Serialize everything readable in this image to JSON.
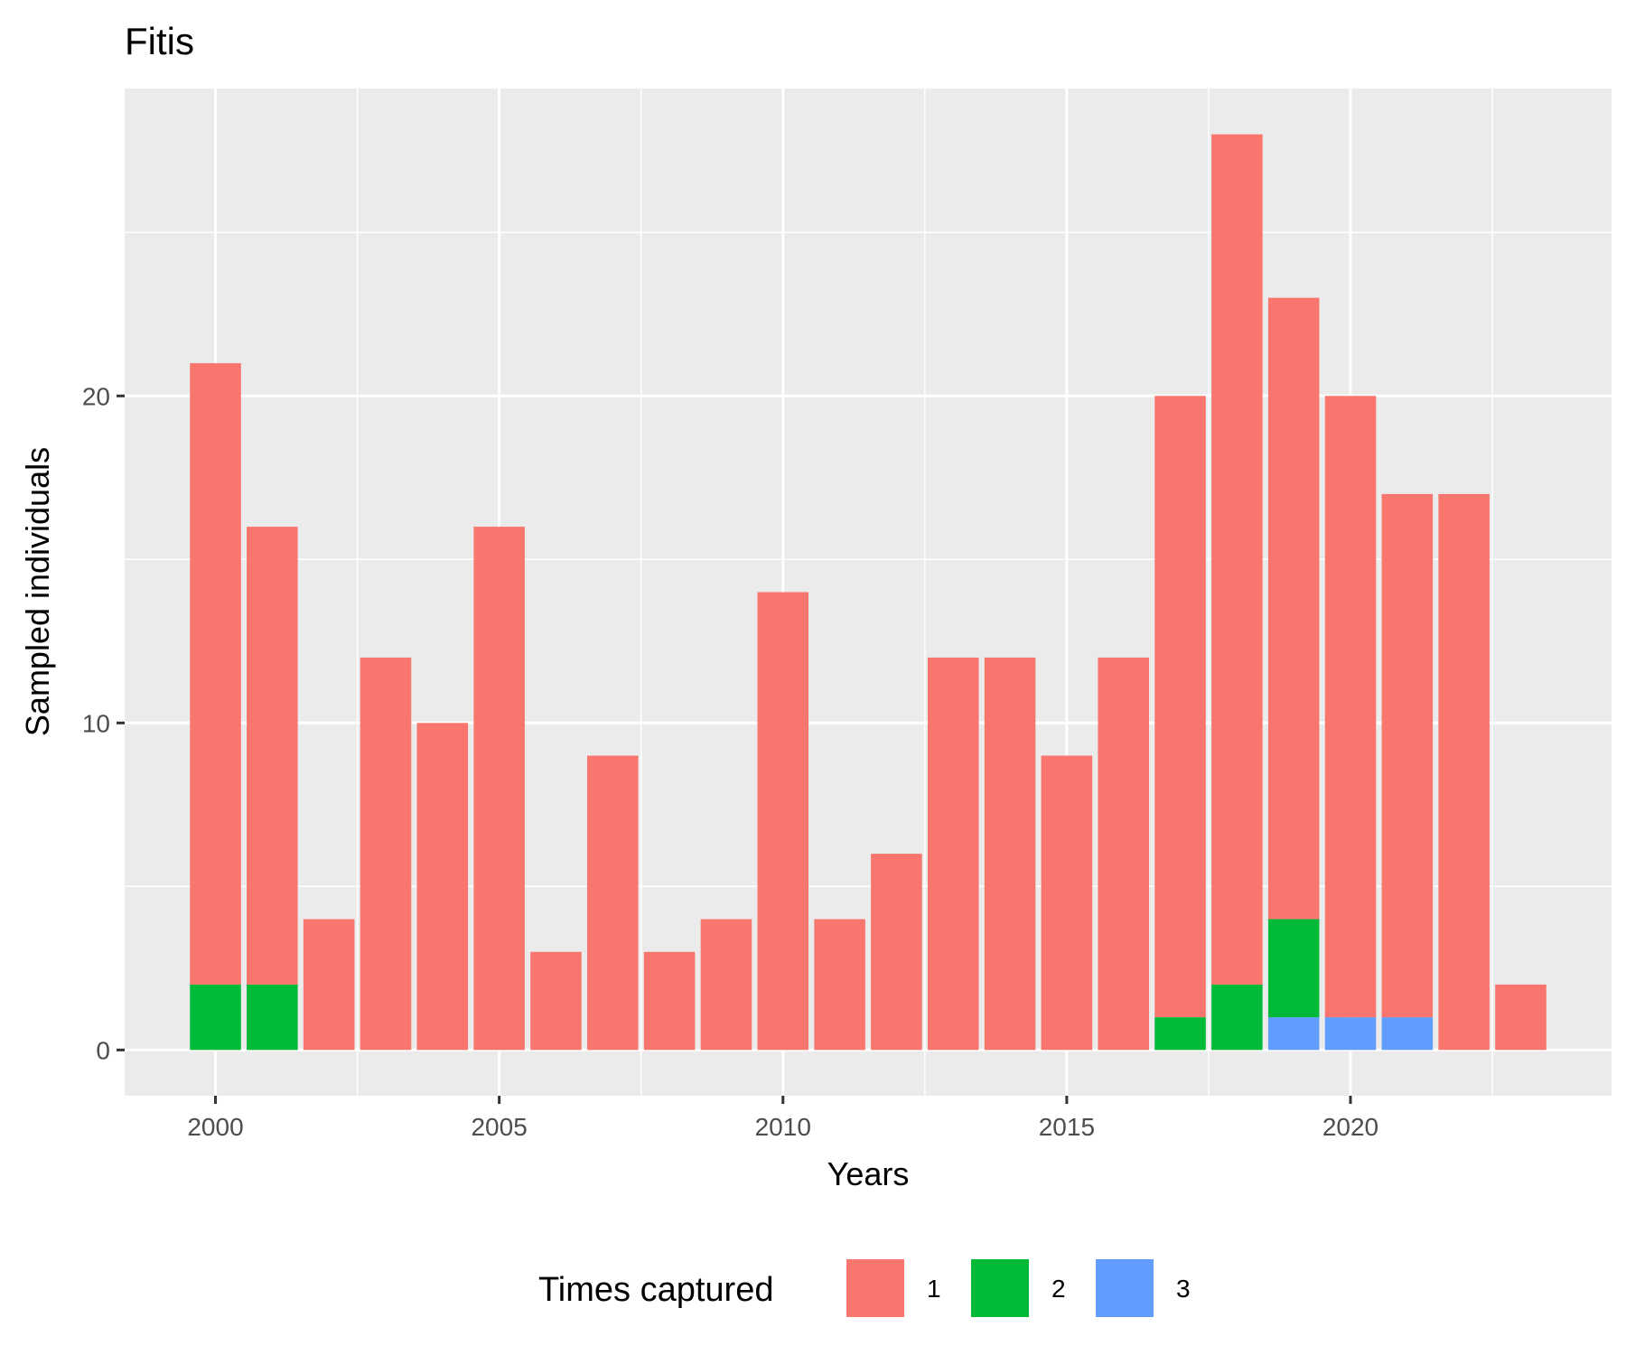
{
  "chart_data": {
    "type": "bar",
    "stacked": true,
    "title": "Fitis",
    "xlabel": "Years",
    "ylabel": "Sampled individuals",
    "x": [
      2000,
      2001,
      2002,
      2003,
      2004,
      2005,
      2006,
      2007,
      2008,
      2009,
      2010,
      2011,
      2012,
      2013,
      2014,
      2015,
      2016,
      2017,
      2018,
      2019,
      2020,
      2021,
      2022,
      2023
    ],
    "xlim": [
      1998.4,
      2024.6
    ],
    "ylim": [
      -1.4,
      29.4
    ],
    "x_ticks": [
      2000,
      2005,
      2010,
      2015,
      2020
    ],
    "y_ticks": [
      0,
      10,
      20
    ],
    "x_tick_labels": [
      "2000",
      "2005",
      "2010",
      "2015",
      "2020"
    ],
    "y_tick_labels": [
      "0",
      "10",
      "20"
    ],
    "grid": true,
    "legend": {
      "title": "Times captured",
      "position": "bottom"
    },
    "series": [
      {
        "name": "1",
        "color": "#F8766D",
        "values": [
          19,
          14,
          4,
          12,
          10,
          16,
          3,
          9,
          3,
          4,
          14,
          4,
          6,
          12,
          12,
          9,
          12,
          19,
          26,
          19,
          19,
          16,
          17,
          2
        ]
      },
      {
        "name": "2",
        "color": "#00BA38",
        "values": [
          2,
          2,
          0,
          0,
          0,
          0,
          0,
          0,
          0,
          0,
          0,
          0,
          0,
          0,
          0,
          0,
          0,
          1,
          2,
          3,
          0,
          0,
          0,
          0
        ]
      },
      {
        "name": "3",
        "color": "#619CFF",
        "values": [
          0,
          0,
          0,
          0,
          0,
          0,
          0,
          0,
          0,
          0,
          0,
          0,
          0,
          0,
          0,
          0,
          0,
          0,
          0,
          1,
          1,
          1,
          0,
          0
        ]
      }
    ]
  }
}
